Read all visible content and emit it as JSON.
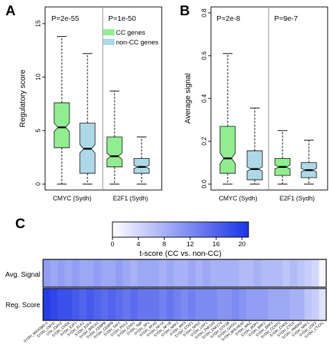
{
  "chart_data": [
    {
      "panel": "A",
      "type": "box",
      "ylabel": "Regulatory score",
      "ylim": [
        0,
        16
      ],
      "yticks": [
        0,
        5,
        10,
        15
      ],
      "groups": [
        "CMYC (Sydh)",
        "E2F1 (Sydh)"
      ],
      "pvalues": [
        "P=2e-55",
        "P=1e-50"
      ],
      "legend": {
        "placement": "top-right",
        "entries": [
          "CC genes",
          "non-CC genes"
        ]
      },
      "colors": {
        "cc": "#90ee90",
        "noncc": "#add8e6"
      },
      "series": [
        {
          "name": "CC genes",
          "group": "CMYC (Sydh)",
          "whisker_low": 0,
          "q1": 3.4,
          "median": 5.3,
          "q3": 7.6,
          "whisker_high": 13.8,
          "notch": [
            4.9,
            5.7
          ]
        },
        {
          "name": "non-CC genes",
          "group": "CMYC (Sydh)",
          "whisker_low": 0,
          "q1": 1.0,
          "median": 3.3,
          "q3": 5.7,
          "whisker_high": 12.2,
          "notch": [
            2.9,
            3.7
          ]
        },
        {
          "name": "CC genes",
          "group": "E2F1 (Sydh)",
          "whisker_low": 0,
          "q1": 1.6,
          "median": 2.6,
          "q3": 4.4,
          "whisker_high": 8.7,
          "notch": [
            2.3,
            2.9
          ]
        },
        {
          "name": "non-CC genes",
          "group": "E2F1 (Sydh)",
          "whisker_low": 0,
          "q1": 1.0,
          "median": 1.6,
          "q3": 2.4,
          "whisker_high": 4.4,
          "notch": [
            1.45,
            1.75
          ]
        }
      ]
    },
    {
      "panel": "B",
      "type": "box",
      "ylabel": "Average signal",
      "ylim": [
        0,
        0.8
      ],
      "yticks": [
        0.0,
        0.2,
        0.4,
        0.6,
        0.8
      ],
      "yticklabels": [
        "0.0",
        "0.2",
        "0.4",
        "0.6",
        "0.8"
      ],
      "groups": [
        "CMYC (Sydh)",
        "E2F1 (Sydh)"
      ],
      "pvalues": [
        "P=2e-8",
        "P=9e-7"
      ],
      "series": [
        {
          "name": "CC genes",
          "group": "CMYC (Sydh)",
          "whisker_low": 0,
          "q1": 0.05,
          "median": 0.12,
          "q3": 0.27,
          "whisker_high": 0.61,
          "notch": [
            0.095,
            0.145
          ]
        },
        {
          "name": "non-CC genes",
          "group": "CMYC (Sydh)",
          "whisker_low": 0,
          "q1": 0.02,
          "median": 0.07,
          "q3": 0.155,
          "whisker_high": 0.355,
          "notch": [
            0.06,
            0.08
          ]
        },
        {
          "name": "CC genes",
          "group": "E2F1 (Sydh)",
          "whisker_low": 0,
          "q1": 0.04,
          "median": 0.08,
          "q3": 0.12,
          "whisker_high": 0.25,
          "notch": [
            0.07,
            0.09
          ]
        },
        {
          "name": "non-CC genes",
          "group": "E2F1 (Sydh)",
          "whisker_low": 0,
          "q1": 0.03,
          "median": 0.065,
          "q3": 0.1,
          "whisker_high": 0.205,
          "notch": [
            0.057,
            0.073
          ]
        }
      ]
    },
    {
      "panel": "C",
      "type": "heatmap",
      "colorbar": {
        "title": "t-score (CC vs. non-CC)",
        "ticks": [
          0,
          4,
          8,
          12,
          16,
          20
        ],
        "range": [
          0,
          21
        ],
        "color_low": "#ffffff",
        "color_high": "#1a33e6"
      },
      "rows": [
        "Avg. Signal",
        "Reg. Score"
      ],
      "columns": [
        "SYDH_MAX(IgG-r)",
        "SYDH_CMYC",
        "UTA_CMYC",
        "SYDH_CHD2",
        "SYDH_E2F1",
        "SYDH_ELK1",
        "SYDH_E2F4",
        "SYDH_BRCA1",
        "SYDH_CEBPB",
        "SYDH_CEBPB",
        "SYDH_TAF1",
        "SYDH_POL2",
        "SYDH_CHD1",
        "SYDH_TBP",
        "SYDH_SP1",
        "SYDH_RFX5",
        "SYDH_NFYA",
        "SYDH_NFYB",
        "SYDH_NRF1",
        "SYDH_IRF3",
        "SYDH_STAT1",
        "SYDH_NFE2",
        "SYDH_USF1",
        "SYDH_ZNF143",
        "SYDH_ZNF274",
        "SYDH_GTF2B",
        "SYDH_GATA1",
        "SYDH_BHLHE40",
        "SYDH_MAZ",
        "SYDH_BDP1",
        "SYDH_BRF1",
        "SYDH_BRF2",
        "SYDH_CCNT2",
        "SYDH_CHD2",
        "SYDH_CTCF",
        "SYDH_HMGN3",
        "SYDH_NRF1",
        "SYDH_USF2",
        "SYDH_CTCFL"
      ],
      "values": {
        "Avg. Signal": [
          10,
          9,
          10,
          9,
          10,
          9,
          9,
          10,
          9,
          9,
          10,
          9,
          8,
          9,
          9,
          9,
          8,
          9,
          8,
          8,
          9,
          8,
          9,
          8,
          8,
          8,
          8,
          7,
          7,
          8,
          7,
          7,
          7,
          6,
          7,
          6,
          5,
          4,
          1
        ],
        "Reg. Score": [
          20,
          19,
          18,
          18,
          17,
          16,
          17,
          16,
          15,
          16,
          15,
          14,
          15,
          14,
          14,
          14,
          13,
          14,
          13,
          12,
          13,
          12,
          12,
          12,
          11,
          11,
          12,
          11,
          10,
          10,
          10,
          9,
          9,
          9,
          8,
          8,
          6,
          5,
          3
        ]
      }
    }
  ]
}
